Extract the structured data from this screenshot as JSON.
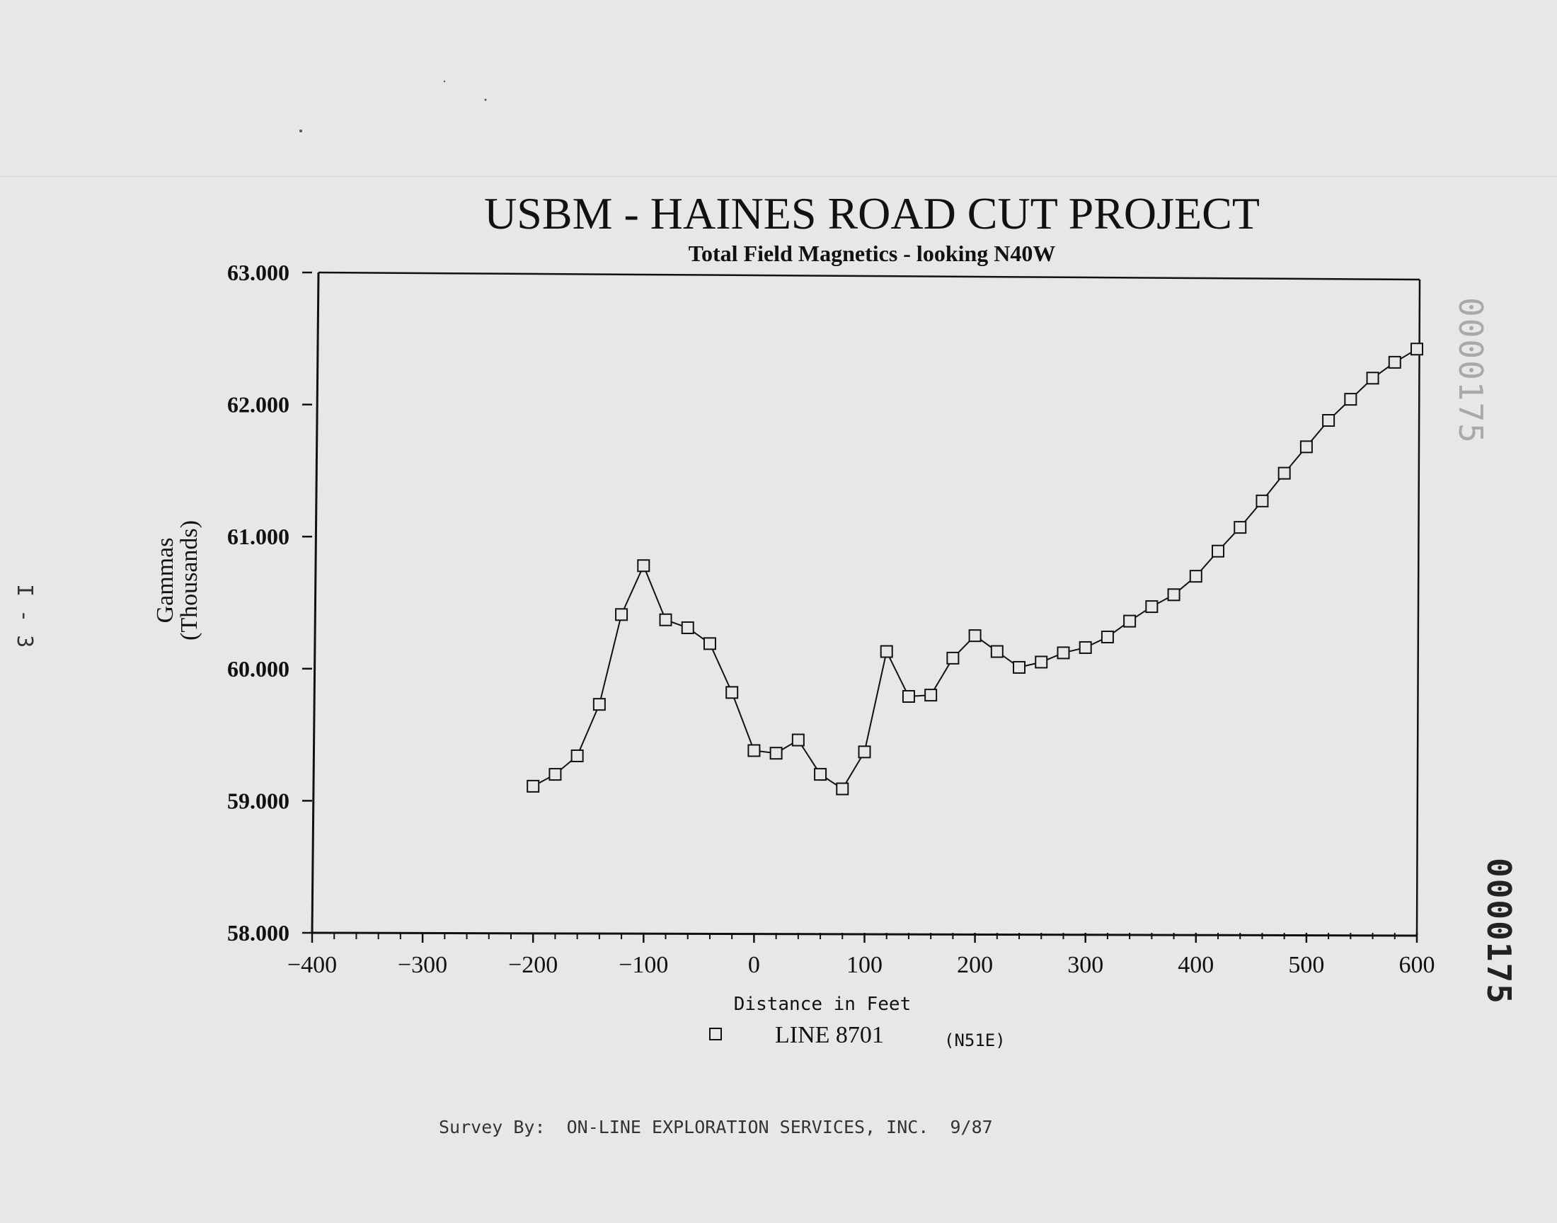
{
  "chart_data": {
    "type": "line",
    "title": "USBM - HAINES ROAD CUT PROJECT",
    "subtitle": "Total Field Magnetics - looking N40W",
    "xlabel": "Distance in Feet",
    "ylabel": "Gammas",
    "ylabel_units": "(Thousands)",
    "xlim": [
      -400,
      600
    ],
    "ylim": [
      58.0,
      63.0
    ],
    "x_ticks": [
      "−400",
      "−300",
      "−200",
      "−100",
      "0",
      "100",
      "200",
      "300",
      "400",
      "500",
      "600"
    ],
    "y_ticks": [
      "58.000",
      "59.000",
      "60.000",
      "61.000",
      "62.000",
      "63.000"
    ],
    "grid": false,
    "legend_position": "bottom-center",
    "legend_label": "LINE 8701",
    "legend_note": "(N51E)",
    "series": [
      {
        "name": "LINE 8701",
        "marker": "square",
        "x": [
          -200,
          -180,
          -160,
          -140,
          -120,
          -100,
          -80,
          -60,
          -40,
          -20,
          0,
          20,
          40,
          60,
          80,
          100,
          120,
          140,
          160,
          180,
          200,
          220,
          240,
          260,
          280,
          300,
          320,
          340,
          360,
          380,
          400,
          420,
          440,
          460,
          480,
          500,
          520,
          540,
          560,
          580,
          600
        ],
        "y": [
          59.11,
          59.2,
          59.34,
          59.73,
          60.41,
          60.78,
          60.37,
          60.31,
          60.19,
          59.82,
          59.38,
          59.36,
          59.46,
          59.2,
          59.09,
          59.37,
          60.13,
          59.79,
          59.8,
          60.08,
          60.25,
          60.13,
          60.01,
          60.05,
          60.12,
          60.16,
          60.24,
          60.36,
          60.47,
          60.56,
          60.7,
          60.89,
          61.07,
          61.27,
          61.48,
          61.68,
          61.88,
          62.04,
          62.2,
          62.32,
          62.42
        ]
      }
    ]
  },
  "page": {
    "page_code": "I - 3",
    "stamp_top": "0000175",
    "stamp_bottom": "0000175",
    "footer": "Survey By:  ON-LINE EXPLORATION SERVICES, INC.  9/87"
  }
}
